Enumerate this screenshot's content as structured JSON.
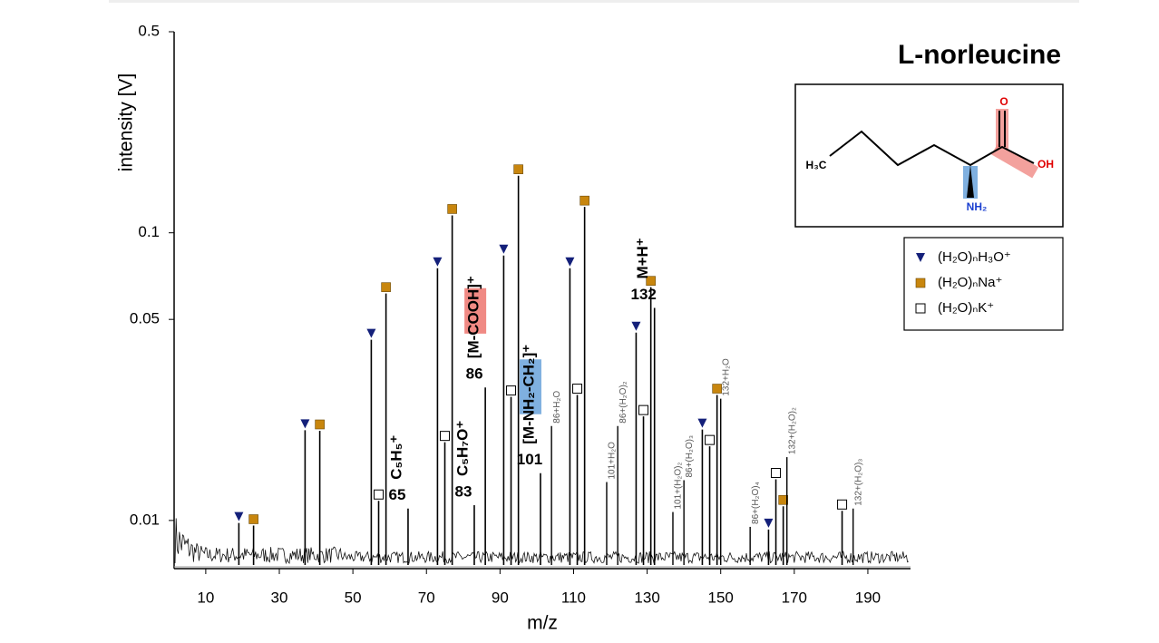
{
  "chart_data": {
    "type": "stem",
    "title": "L-norleucine",
    "xlabel": "m/z",
    "ylabel": "intensity [V]",
    "xlim": [
      1.4,
      201.6
    ],
    "ylim": [
      0.0068,
      0.5
    ],
    "log_y": true,
    "xticks": [
      10,
      30,
      50,
      70,
      90,
      110,
      130,
      150,
      170,
      190
    ],
    "yticks": [
      0.01,
      0.05,
      0.1,
      0.5
    ],
    "stem_color": "#000000",
    "series": [
      {
        "name": "(H₂O)ₙH₃O⁺",
        "marker": "triangle",
        "color": "#14207a",
        "x": [
          19,
          37,
          55,
          73,
          91,
          109,
          127,
          145,
          163
        ],
        "values": [
          0.0098,
          0.0206,
          0.0425,
          0.0753,
          0.0834,
          0.0753,
          0.045,
          0.0207,
          0.0093
        ]
      },
      {
        "name": "(H₂O)ₙNa⁺",
        "marker": "square",
        "color": "#c8860e",
        "x": [
          23,
          41,
          59,
          77,
          95,
          113,
          131,
          149,
          167
        ],
        "values": [
          0.0096,
          0.0205,
          0.0615,
          0.115,
          0.158,
          0.123,
          0.0647,
          0.0273,
          0.0112
        ]
      },
      {
        "name": "(H₂O)ₙK⁺",
        "marker": "open-square",
        "color": "#2e6b2e",
        "x": [
          57,
          75,
          93,
          111,
          129,
          147,
          165,
          183
        ],
        "values": [
          0.0117,
          0.0187,
          0.0269,
          0.0273,
          0.023,
          0.0181,
          0.0139,
          0.0108
        ]
      }
    ],
    "fragments": [
      {
        "x": 65,
        "value": 0.011,
        "formula": "C₅H₅⁺",
        "mass": "65"
      },
      {
        "x": 83,
        "value": 0.0113,
        "formula": "C₅H₇O⁺",
        "mass": "83"
      },
      {
        "x": 86,
        "value": 0.029,
        "formula": "[M-COOH]⁺",
        "mass": "86",
        "highlight": "#f08a84"
      },
      {
        "x": 101,
        "value": 0.0146,
        "formula": "[M-NH₂-CH₂]⁺",
        "mass": "101",
        "highlight": "#7fb0e0"
      },
      {
        "x": 132,
        "value": 0.0548,
        "formula": "M+H⁺",
        "mass": "132"
      }
    ],
    "clusters": [
      {
        "x": 104,
        "value": 0.0213,
        "label": "86+H₂O"
      },
      {
        "x": 119,
        "value": 0.0136,
        "label": "101+H₂O"
      },
      {
        "x": 122,
        "value": 0.0213,
        "label": "86+(H₂O)₂"
      },
      {
        "x": 137,
        "value": 0.0107,
        "label": "101+(H₂O)₂"
      },
      {
        "x": 140,
        "value": 0.0138,
        "label": "86+(H₂O)₃"
      },
      {
        "x": 150,
        "value": 0.0265,
        "label": "132+H₂O"
      },
      {
        "x": 158,
        "value": 0.0095,
        "label": "86+(H₂O)₄"
      },
      {
        "x": 168,
        "value": 0.0166,
        "label": "132+(H₂O)₂"
      },
      {
        "x": 186,
        "value": 0.011,
        "label": "132+(H₂O)₃"
      }
    ],
    "molecule": {
      "methyl": "H₃C",
      "carbonyl": "O",
      "hydroxyl": "OH",
      "amine": "NH₂"
    }
  }
}
